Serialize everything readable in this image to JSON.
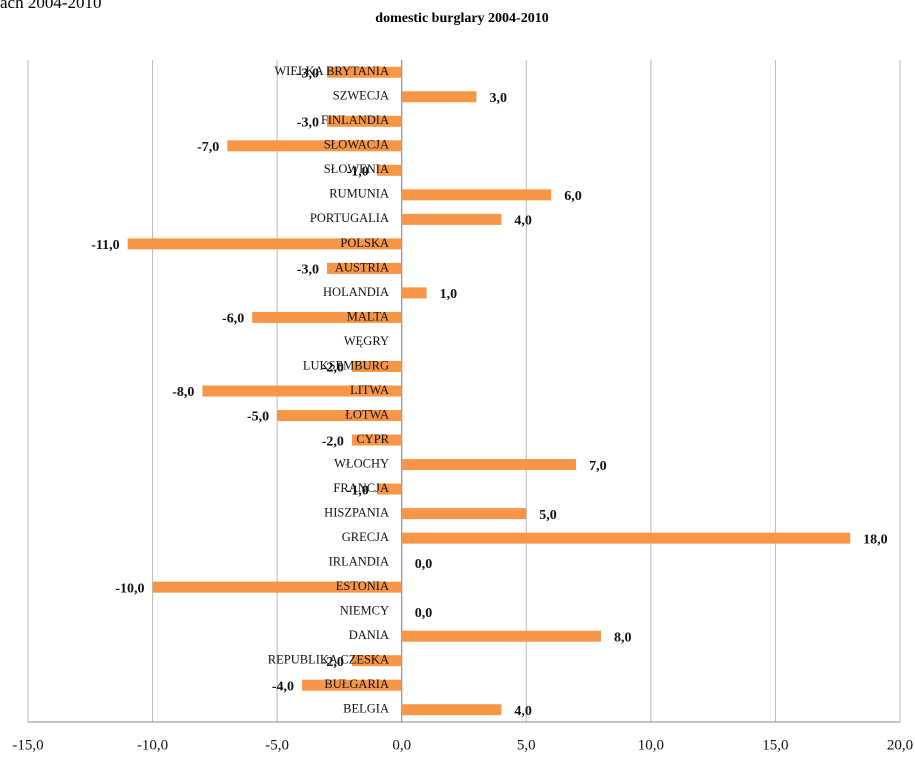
{
  "page_fragment": "ach 2004-2010",
  "chart_data": {
    "type": "hbar",
    "title": "domestic burglary 2004-2010",
    "categories": [
      "WIELKA BRYTANIA",
      "SZWECJA",
      "FINLANDIA",
      "SŁOWACJA",
      "SŁOWENIA",
      "RUMUNIA",
      "PORTUGALIA",
      "POLSKA",
      "AUSTRIA",
      "HOLANDIA",
      "MALTA",
      "WĘGRY",
      "LUKSEMBURG",
      "LITWA",
      "ŁOTWA",
      "CYPR",
      "WŁOCHY",
      "FRANCJA",
      "HISZPANIA",
      "GRECJA",
      "IRLANDIA",
      "ESTONIA",
      "NIEMCY",
      "DANIA",
      "REPUBLIKA CZESKA",
      "BUŁGARIA",
      "BELGIA"
    ],
    "values": [
      -3,
      3,
      -3,
      -7,
      -1,
      6,
      4,
      -11,
      -3,
      1,
      -6,
      null,
      -2,
      -8,
      -5,
      -2,
      7,
      -1,
      5,
      18,
      0,
      -10,
      0,
      8,
      -2,
      -4,
      4
    ],
    "value_labels": [
      "-3,0",
      "3,0",
      "-3,0",
      "-7,0",
      "-1,0",
      "6,0",
      "4,0",
      "-11,0",
      "-3,0",
      "1,0",
      "-6,0",
      null,
      "-2,0",
      "-8,0",
      "-5,0",
      "-2,0",
      "7,0",
      "-1,0",
      "5,0",
      "18,0",
      "0,0",
      "-10,0",
      "0,0",
      "8,0",
      "-2,0",
      "-4,0",
      "4,0"
    ],
    "color": "#f79646",
    "xlim": [
      -15,
      20
    ],
    "xticks": [
      {
        "value": -15,
        "label": "-15,0"
      },
      {
        "value": -10,
        "label": "-10,0"
      },
      {
        "value": -5,
        "label": "-5,0"
      },
      {
        "value": 0,
        "label": "0,0"
      },
      {
        "value": 5,
        "label": "5,0"
      },
      {
        "value": 10,
        "label": "10,0"
      },
      {
        "value": 15,
        "label": "15,0"
      },
      {
        "value": 20,
        "label": "20,0"
      }
    ],
    "grid": true
  }
}
